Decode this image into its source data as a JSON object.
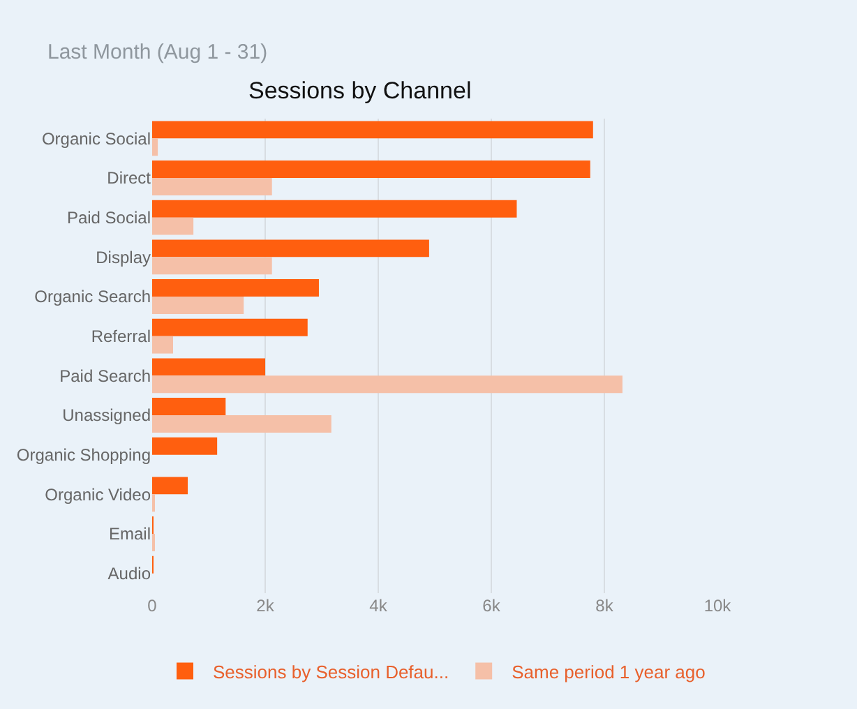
{
  "chart_data": {
    "type": "bar",
    "orientation": "horizontal",
    "title": "Sessions by Channel",
    "subtitle": "Last Month (Aug 1 - 31)",
    "categories": [
      "Organic Social",
      "Direct",
      "Paid Social",
      "Display",
      "Organic Search",
      "Referral",
      "Paid Search",
      "Unassigned",
      "Organic Shopping",
      "Organic Video",
      "Email",
      "Audio"
    ],
    "series": [
      {
        "name": "Sessions by Session Defau...",
        "color": "#ff5f0f",
        "values": [
          7800,
          7750,
          6450,
          4900,
          2950,
          2750,
          2000,
          1300,
          1150,
          630,
          20,
          10
        ]
      },
      {
        "name": "Same period 1 year ago",
        "color": "#f5c0a8",
        "values": [
          100,
          2120,
          730,
          2120,
          1620,
          370,
          8320,
          3170,
          0,
          30,
          30,
          0
        ]
      }
    ],
    "xlim": [
      0,
      10000
    ],
    "xticks": [
      {
        "value": 0,
        "label": "0"
      },
      {
        "value": 2000,
        "label": "2k"
      },
      {
        "value": 4000,
        "label": "4k"
      },
      {
        "value": 6000,
        "label": "6k"
      },
      {
        "value": 8000,
        "label": "8k"
      },
      {
        "value": 10000,
        "label": "10k"
      }
    ],
    "grid": "x",
    "legend": "bottom"
  }
}
